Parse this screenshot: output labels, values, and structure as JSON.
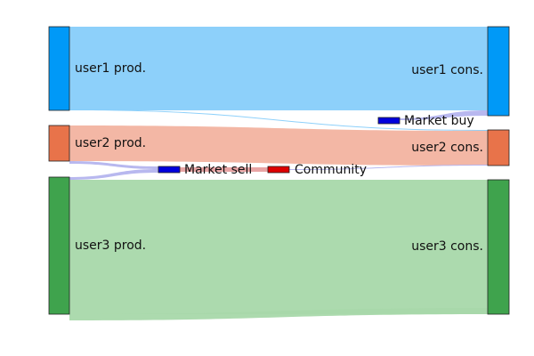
{
  "diagram": {
    "type": "sankey",
    "nodes": [
      {
        "id": "user1_prod",
        "label": "user1 prod.",
        "color": "#0099f7"
      },
      {
        "id": "user2_prod",
        "label": "user2 prod.",
        "color": "#e8734a"
      },
      {
        "id": "user3_prod",
        "label": "user3 prod.",
        "color": "#3fa34d"
      },
      {
        "id": "market_sell",
        "label": "Market sell",
        "color": "#0000dd"
      },
      {
        "id": "community",
        "label": "Community",
        "color": "#dd0000"
      },
      {
        "id": "market_buy",
        "label": "Market buy",
        "color": "#0000dd"
      },
      {
        "id": "user1_cons",
        "label": "user1 cons.",
        "color": "#0099f7"
      },
      {
        "id": "user2_cons",
        "label": "user2 cons.",
        "color": "#e8734a"
      },
      {
        "id": "user3_cons",
        "label": "user3 cons.",
        "color": "#3fa34d"
      }
    ],
    "links": [
      {
        "source": "user1_prod",
        "target": "user1_cons",
        "color": "#87cefa"
      },
      {
        "source": "user1_prod",
        "target": "user2_cons",
        "color": "#87cefa"
      },
      {
        "source": "user2_prod",
        "target": "user2_cons",
        "color": "#f2b3a0"
      },
      {
        "source": "user2_prod",
        "target": "market_sell",
        "color": "#b4b4ee"
      },
      {
        "source": "user3_prod",
        "target": "market_sell",
        "color": "#b4b4ee"
      },
      {
        "source": "user3_prod",
        "target": "user3_cons",
        "color": "#a8d8aa"
      },
      {
        "source": "market_sell",
        "target": "community",
        "color": "#e8a0a0"
      },
      {
        "source": "market_buy",
        "target": "user1_cons",
        "color": "#b4b4ee"
      },
      {
        "source": "community",
        "target": "user2_cons",
        "color": "#b4b4ee"
      },
      {
        "source": "user3_prod",
        "target": "user3_cons",
        "color": "#a8d8aa"
      }
    ]
  }
}
